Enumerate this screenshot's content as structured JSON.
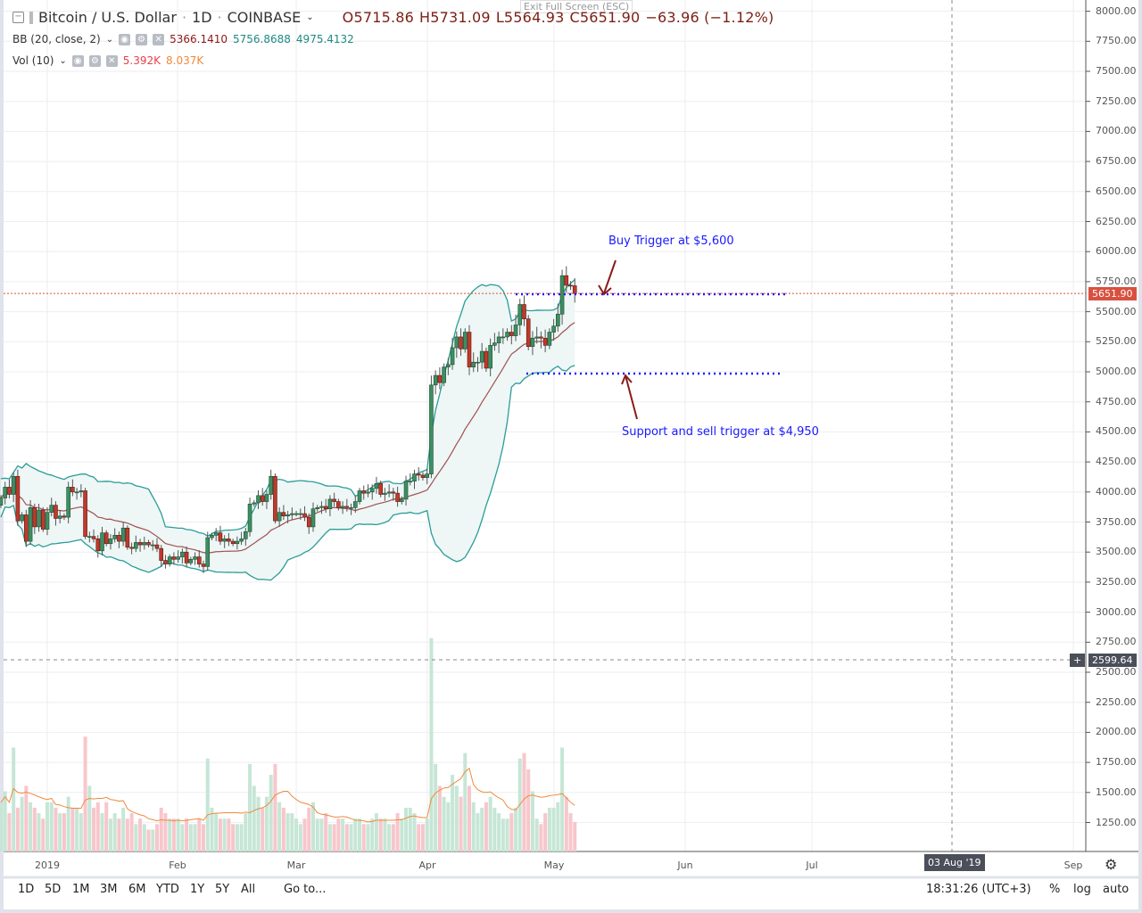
{
  "header": {
    "symbol": "Bitcoin / U.S. Dollar",
    "interval": "1D",
    "exchange": "COINBASE",
    "open": "O5715.86",
    "high": "H5731.09",
    "low": "L5564.93",
    "close": "C5651.90",
    "change": "−63.96 (−1.12%)"
  },
  "exit_fullscreen": "Exit Full Screen (ESC)",
  "bb": {
    "label": "BB (20, close, 2)",
    "basis": "5366.1410",
    "upper": "5756.8688",
    "lower": "4975.4132"
  },
  "vol": {
    "label": "Vol (10)",
    "value": "5.392K",
    "ma": "8.037K"
  },
  "price_axis": [
    "8000.00",
    "7750.00",
    "7500.00",
    "7250.00",
    "7000.00",
    "6750.00",
    "6500.00",
    "6250.00",
    "6000.00",
    "5750.00",
    "5500.00",
    "5250.00",
    "5000.00",
    "4750.00",
    "4500.00",
    "4250.00",
    "4000.00",
    "3750.00",
    "3500.00",
    "3250.00",
    "3000.00",
    "2750.00",
    "2500.00",
    "2250.00",
    "2000.00",
    "1750.00",
    "1500.00",
    "1250.00"
  ],
  "last_price": "5651.90",
  "crosshair": {
    "price": "2599.64",
    "date": "03 Aug '19"
  },
  "time_axis": [
    "2019",
    "Feb",
    "Mar",
    "Apr",
    "May",
    "Jun",
    "Jul",
    "Sep"
  ],
  "annotations": {
    "buy": "Buy Trigger at $5,600",
    "sell": "Support and sell trigger at $4,950",
    "buy_level": 5600,
    "sell_level": 4950
  },
  "toolbar": {
    "ranges": [
      "1D",
      "5D",
      "1M",
      "3M",
      "6M",
      "YTD",
      "1Y",
      "5Y",
      "All"
    ],
    "goto": "Go to...",
    "clock": "18:31:26 (UTC+3)",
    "pct": "%",
    "log": "log",
    "auto": "auto"
  },
  "colors": {
    "up": "#3d8f62",
    "down": "#c0392b",
    "bb_band": "#2a9d96",
    "bb_basis": "#a0524f",
    "vol_up": "#c6e6d6",
    "vol_down": "#f7c6cb",
    "vol_ma": "#f08a3c",
    "annotation": "#1a1aff",
    "arrow": "#8b1a1a"
  },
  "chart_data": {
    "type": "candlestick",
    "title": "Bitcoin / U.S. Dollar · 1D · COINBASE",
    "first_date": "2018-12-21",
    "ylim": [
      1000,
      8000
    ],
    "grid": true,
    "closes": [
      3950,
      4040,
      3980,
      4130,
      3760,
      3810,
      3590,
      3870,
      3710,
      3850,
      3690,
      3830,
      3890,
      3780,
      3800,
      3790,
      4040,
      4000,
      4000,
      4010,
      3630,
      3630,
      3610,
      3510,
      3660,
      3570,
      3610,
      3640,
      3590,
      3700,
      3540,
      3530,
      3580,
      3560,
      3580,
      3560,
      3560,
      3530,
      3430,
      3400,
      3460,
      3440,
      3460,
      3500,
      3410,
      3440,
      3460,
      3400,
      3380,
      3620,
      3640,
      3660,
      3590,
      3610,
      3590,
      3570,
      3590,
      3610,
      3670,
      3900,
      3910,
      3970,
      3920,
      3980,
      4130,
      3760,
      3830,
      3800,
      3810,
      3820,
      3820,
      3820,
      3790,
      3710,
      3860,
      3870,
      3880,
      3860,
      3940,
      3920,
      3870,
      3880,
      3870,
      3870,
      3920,
      4010,
      3990,
      4000,
      4030,
      4070,
      3980,
      3990,
      4000,
      3990,
      3920,
      3940,
      4090,
      4090,
      4150,
      4140,
      4120,
      4150,
      4890,
      4970,
      4910,
      5040,
      5060,
      5200,
      5290,
      5190,
      5330,
      5040,
      5080,
      5080,
      5170,
      5030,
      5220,
      5240,
      5290,
      5290,
      5330,
      5300,
      5390,
      5560,
      5440,
      5210,
      5280,
      5290,
      5280,
      5220,
      5330,
      5380,
      5480,
      5800,
      5720,
      5715.86,
      5651.9
    ],
    "volumes_k": [
      9,
      11,
      7,
      19,
      8,
      10,
      12,
      9,
      8,
      7,
      6,
      9,
      9,
      8,
      7,
      7,
      10,
      8,
      8,
      7,
      21,
      12,
      8,
      9,
      7,
      9,
      6,
      7,
      6,
      8,
      6,
      7,
      5,
      6,
      5,
      4,
      4,
      5,
      8,
      7,
      6,
      6,
      6,
      5,
      6,
      5,
      5,
      6,
      5,
      17,
      8,
      7,
      6,
      6,
      6,
      5,
      5,
      5,
      7,
      16,
      12,
      10,
      8,
      10,
      14,
      16,
      9,
      8,
      7,
      7,
      6,
      5,
      6,
      8,
      9,
      6,
      6,
      7,
      5,
      5,
      6,
      6,
      5,
      5,
      6,
      6,
      5,
      5,
      6,
      7,
      6,
      6,
      5,
      5,
      7,
      6,
      8,
      8,
      7,
      5,
      5,
      6,
      39,
      16,
      12,
      10,
      9,
      14,
      12,
      10,
      18,
      12,
      9,
      7,
      8,
      9,
      10,
      8,
      7,
      6,
      6,
      7,
      8,
      17,
      18,
      15,
      11,
      6,
      5,
      7,
      8,
      8,
      9,
      19,
      10,
      7,
      5.392
    ]
  }
}
